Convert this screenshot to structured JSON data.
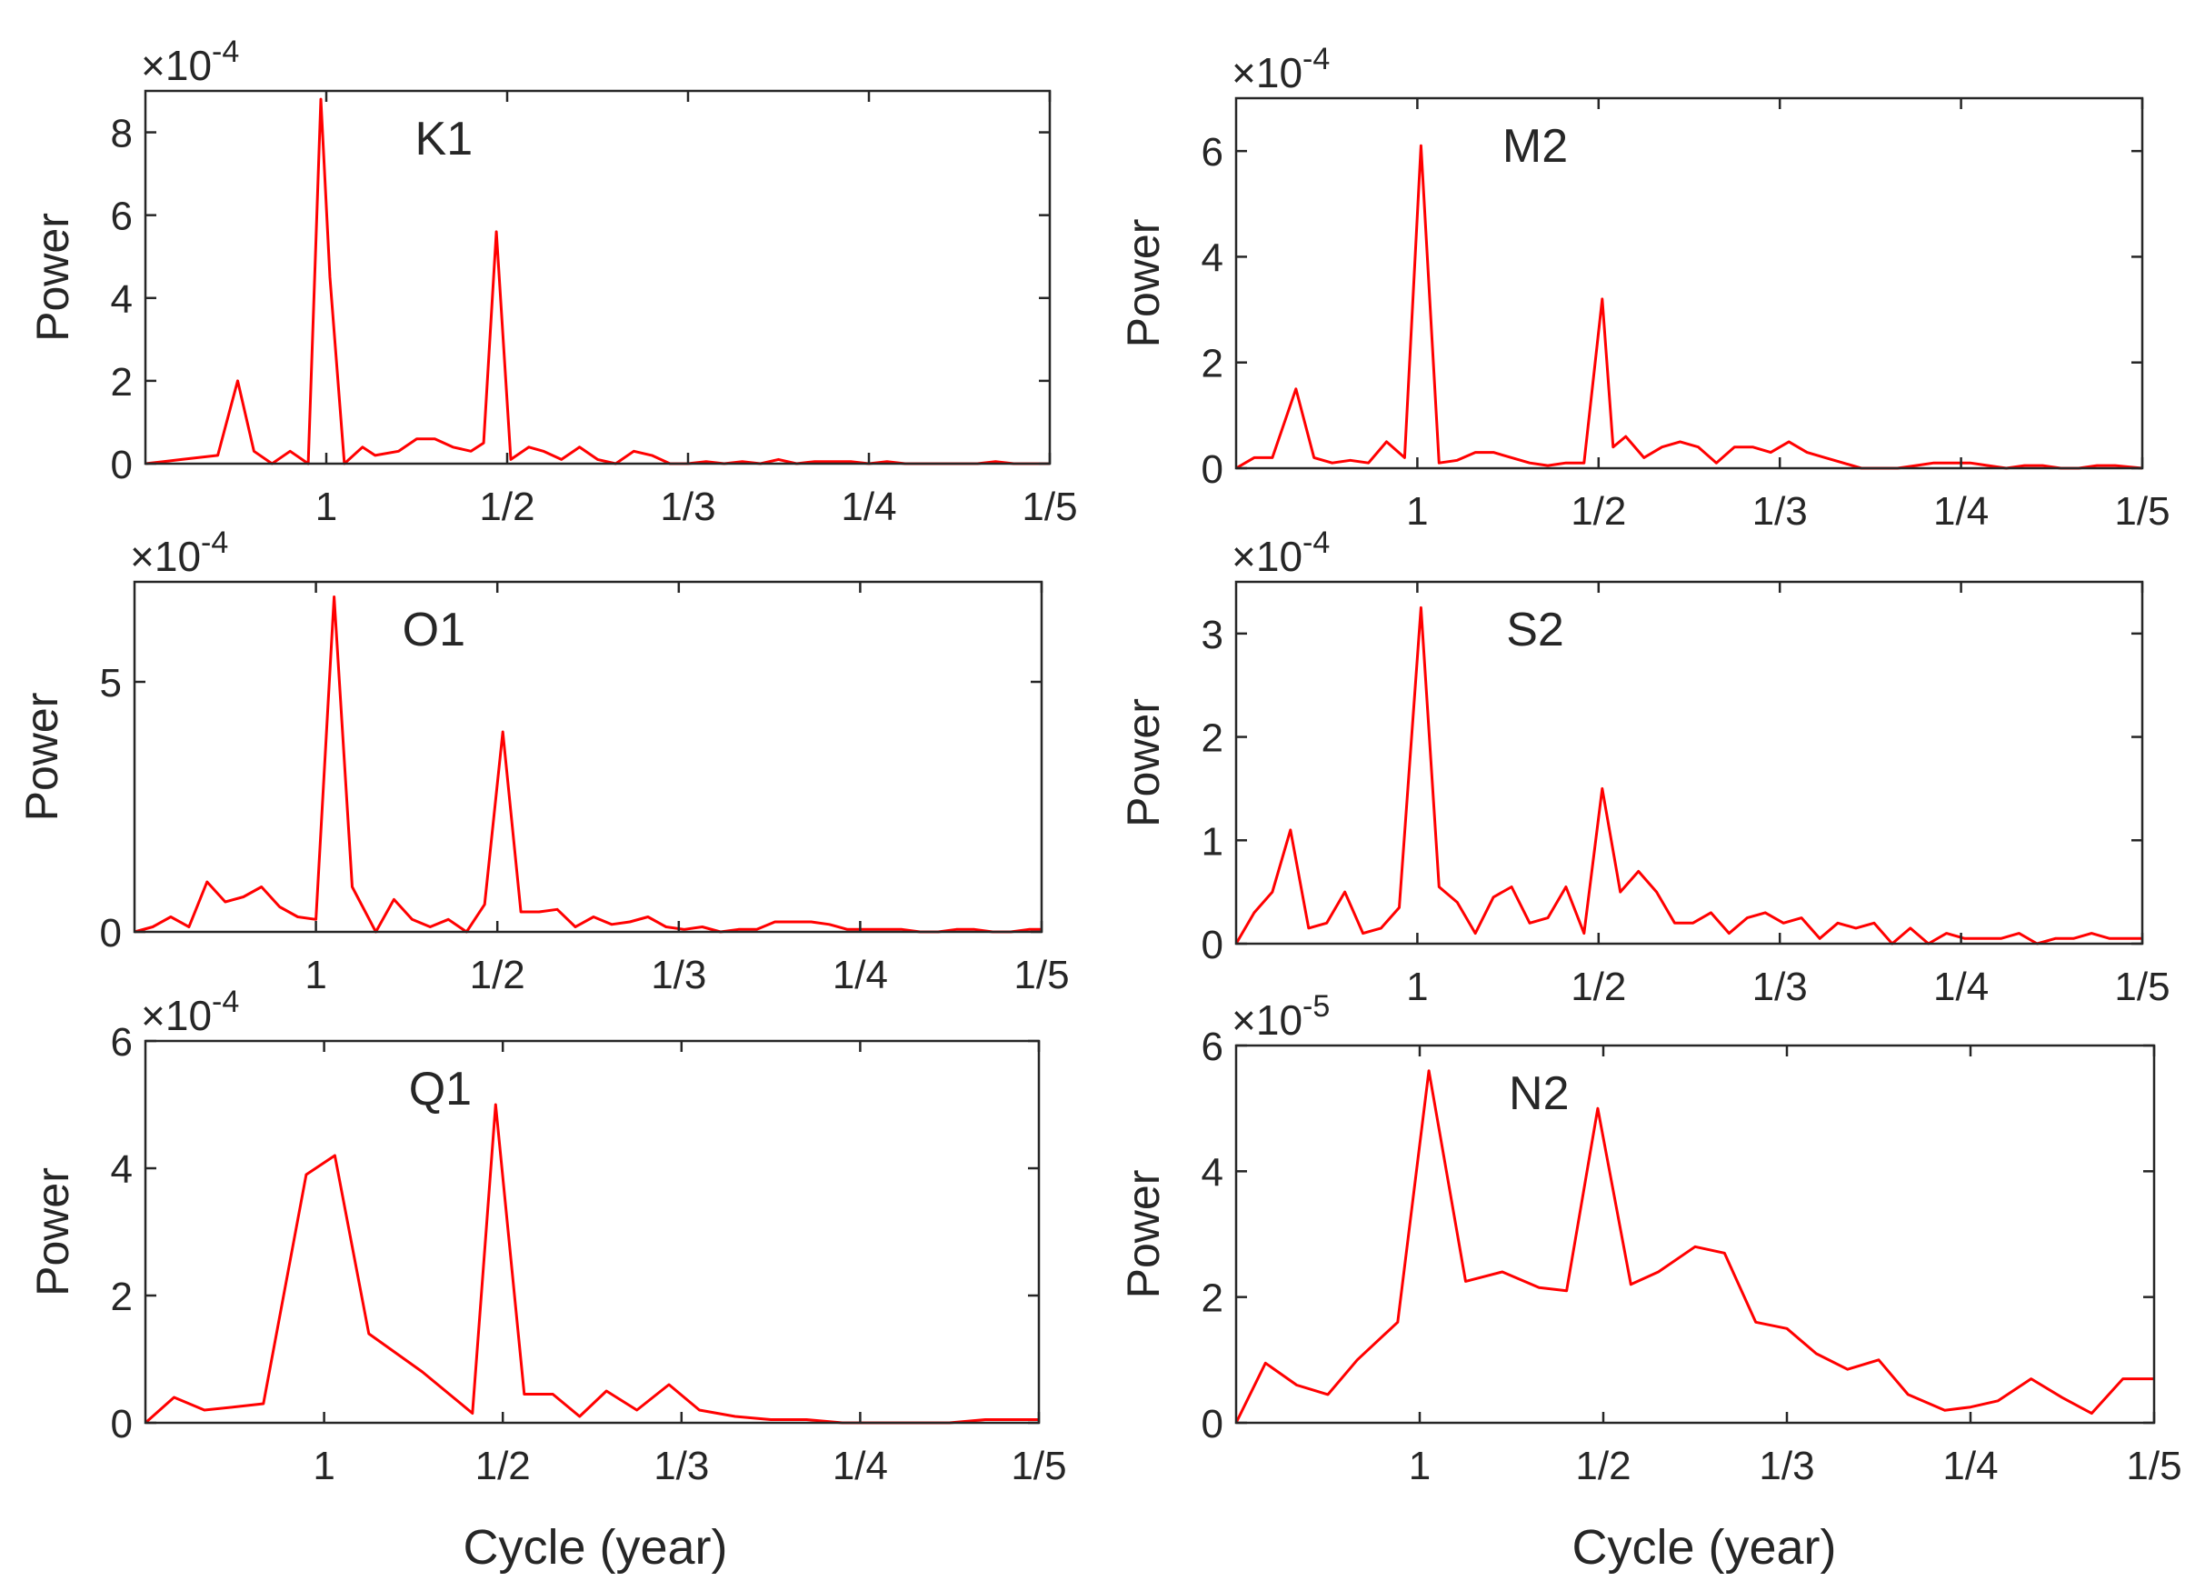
{
  "figure": {
    "xlabel": "Cycle (year)",
    "ylabel": "Power",
    "scale_prefix": "×10",
    "series_color": "#ff0000",
    "axes_color": "#262626"
  },
  "chart_data": [
    {
      "type": "line",
      "title": "K1",
      "xlabel": "",
      "ylabel": "Power",
      "exponent": "-4",
      "categories": [
        "1",
        "1/2",
        "1/3",
        "1/4",
        "1/5"
      ],
      "x_tick_values": [
        1,
        2,
        3,
        4,
        5
      ],
      "xlim": [
        0.0,
        5.0
      ],
      "ylim": [
        0,
        9
      ],
      "y_ticks": [
        0,
        2,
        4,
        6,
        8
      ],
      "y_tick_labels": [
        "0",
        "2",
        "4",
        "6",
        "8"
      ],
      "series": [
        {
          "name": "K1",
          "x": [
            0.0,
            0.1,
            0.2,
            0.4,
            0.51,
            0.6,
            0.7,
            0.8,
            0.9,
            0.97,
            1.02,
            1.1,
            1.2,
            1.27,
            1.4,
            1.5,
            1.6,
            1.7,
            1.8,
            1.87,
            1.94,
            2.02,
            2.12,
            2.2,
            2.3,
            2.4,
            2.5,
            2.6,
            2.7,
            2.8,
            2.9,
            3.0,
            3.1,
            3.2,
            3.3,
            3.4,
            3.5,
            3.6,
            3.7,
            3.8,
            3.9,
            4.0,
            4.1,
            4.2,
            4.3,
            4.4,
            4.5,
            4.6,
            4.7,
            4.8,
            4.9,
            5.0
          ],
          "values": [
            0.0,
            0.05,
            0.1,
            0.2,
            2.0,
            0.3,
            0.0,
            0.3,
            0.0,
            8.8,
            4.5,
            0.0,
            0.4,
            0.2,
            0.3,
            0.6,
            0.6,
            0.4,
            0.3,
            0.5,
            5.6,
            0.1,
            0.4,
            0.3,
            0.1,
            0.4,
            0.1,
            0.0,
            0.3,
            0.2,
            0.0,
            0.0,
            0.05,
            0.0,
            0.05,
            0.0,
            0.1,
            0.0,
            0.05,
            0.05,
            0.05,
            0.0,
            0.05,
            0.0,
            0.0,
            0.0,
            0.0,
            0.0,
            0.05,
            0.0,
            0.0,
            0.0
          ]
        }
      ]
    },
    {
      "type": "line",
      "title": "M2",
      "xlabel": "",
      "ylabel": "Power",
      "exponent": "-4",
      "categories": [
        "1",
        "1/2",
        "1/3",
        "1/4",
        "1/5"
      ],
      "x_tick_values": [
        1,
        2,
        3,
        4,
        5
      ],
      "xlim": [
        0.0,
        5.0
      ],
      "ylim": [
        0,
        7
      ],
      "y_ticks": [
        0,
        2,
        4,
        6
      ],
      "y_tick_labels": [
        "0",
        "2",
        "4",
        "6"
      ],
      "series": [
        {
          "name": "M2",
          "x": [
            0.0,
            0.1,
            0.2,
            0.33,
            0.43,
            0.53,
            0.63,
            0.73,
            0.83,
            0.93,
            1.02,
            1.12,
            1.22,
            1.32,
            1.42,
            1.52,
            1.62,
            1.72,
            1.82,
            1.92,
            2.02,
            2.08,
            2.15,
            2.25,
            2.35,
            2.45,
            2.55,
            2.65,
            2.75,
            2.85,
            2.95,
            3.05,
            3.15,
            3.25,
            3.35,
            3.45,
            3.55,
            3.65,
            3.75,
            3.85,
            3.95,
            4.05,
            4.15,
            4.25,
            4.35,
            4.45,
            4.55,
            4.65,
            4.75,
            4.85,
            5.0
          ],
          "values": [
            0.0,
            0.2,
            0.2,
            1.5,
            0.2,
            0.1,
            0.15,
            0.1,
            0.5,
            0.2,
            6.1,
            0.1,
            0.15,
            0.3,
            0.3,
            0.2,
            0.1,
            0.05,
            0.1,
            0.1,
            3.2,
            0.4,
            0.6,
            0.2,
            0.4,
            0.5,
            0.4,
            0.1,
            0.4,
            0.4,
            0.3,
            0.5,
            0.3,
            0.2,
            0.1,
            0.0,
            0.0,
            0.0,
            0.05,
            0.1,
            0.1,
            0.1,
            0.05,
            0.0,
            0.05,
            0.05,
            0.0,
            0.0,
            0.05,
            0.05,
            0.0
          ]
        }
      ]
    },
    {
      "type": "line",
      "title": "O1",
      "xlabel": "",
      "ylabel": "Power",
      "exponent": "-4",
      "categories": [
        "1",
        "1/2",
        "1/3",
        "1/4",
        "1/5"
      ],
      "x_tick_values": [
        1,
        2,
        3,
        4,
        5
      ],
      "xlim": [
        0.0,
        5.0
      ],
      "ylim": [
        0,
        7
      ],
      "y_ticks": [
        0,
        5
      ],
      "y_tick_labels": [
        "0",
        "5"
      ],
      "series": [
        {
          "name": "O1",
          "x": [
            0.0,
            0.1,
            0.2,
            0.3,
            0.4,
            0.5,
            0.6,
            0.7,
            0.8,
            0.9,
            1.0,
            1.1,
            1.2,
            1.33,
            1.43,
            1.53,
            1.63,
            1.73,
            1.83,
            1.93,
            2.03,
            2.13,
            2.23,
            2.33,
            2.43,
            2.53,
            2.63,
            2.73,
            2.83,
            2.93,
            3.03,
            3.13,
            3.23,
            3.33,
            3.43,
            3.53,
            3.63,
            3.73,
            3.83,
            3.93,
            4.03,
            4.13,
            4.23,
            4.33,
            4.43,
            4.53,
            4.63,
            4.73,
            4.83,
            4.93,
            5.0
          ],
          "values": [
            0.0,
            0.1,
            0.3,
            0.1,
            1.0,
            0.6,
            0.7,
            0.9,
            0.5,
            0.3,
            0.25,
            6.7,
            0.9,
            0.0,
            0.65,
            0.25,
            0.1,
            0.25,
            0.0,
            0.55,
            4.0,
            0.4,
            0.4,
            0.45,
            0.1,
            0.3,
            0.15,
            0.2,
            0.3,
            0.1,
            0.05,
            0.1,
            0.0,
            0.05,
            0.05,
            0.2,
            0.2,
            0.2,
            0.15,
            0.05,
            0.05,
            0.05,
            0.05,
            0.0,
            0.0,
            0.05,
            0.05,
            0.0,
            0.0,
            0.05,
            0.05
          ]
        }
      ]
    },
    {
      "type": "line",
      "title": "S2",
      "xlabel": "",
      "ylabel": "Power",
      "exponent": "-4",
      "categories": [
        "1",
        "1/2",
        "1/3",
        "1/4",
        "1/5"
      ],
      "x_tick_values": [
        1,
        2,
        3,
        4,
        5
      ],
      "xlim": [
        0.0,
        5.0
      ],
      "ylim": [
        0,
        3.5
      ],
      "y_ticks": [
        0,
        1,
        2,
        3
      ],
      "y_tick_labels": [
        "0",
        "1",
        "2",
        "3"
      ],
      "series": [
        {
          "name": "S2",
          "x": [
            0.0,
            0.1,
            0.2,
            0.3,
            0.4,
            0.5,
            0.6,
            0.7,
            0.8,
            0.9,
            1.02,
            1.12,
            1.22,
            1.32,
            1.42,
            1.52,
            1.62,
            1.72,
            1.82,
            1.92,
            2.02,
            2.12,
            2.22,
            2.32,
            2.42,
            2.52,
            2.62,
            2.72,
            2.82,
            2.92,
            3.02,
            3.12,
            3.22,
            3.32,
            3.42,
            3.52,
            3.62,
            3.72,
            3.82,
            3.92,
            4.02,
            4.12,
            4.22,
            4.32,
            4.42,
            4.52,
            4.62,
            4.72,
            4.82,
            4.92,
            5.0
          ],
          "values": [
            0.0,
            0.3,
            0.5,
            1.1,
            0.15,
            0.2,
            0.5,
            0.1,
            0.15,
            0.35,
            3.25,
            0.55,
            0.4,
            0.1,
            0.45,
            0.55,
            0.2,
            0.25,
            0.55,
            0.1,
            1.5,
            0.5,
            0.7,
            0.5,
            0.2,
            0.2,
            0.3,
            0.1,
            0.25,
            0.3,
            0.2,
            0.25,
            0.05,
            0.2,
            0.15,
            0.2,
            0.0,
            0.15,
            0.0,
            0.1,
            0.05,
            0.05,
            0.05,
            0.1,
            0.0,
            0.05,
            0.05,
            0.1,
            0.05,
            0.05,
            0.05
          ]
        }
      ]
    },
    {
      "type": "line",
      "title": "Q1",
      "xlabel": "Cycle (year)",
      "ylabel": "Power",
      "exponent": "-4",
      "categories": [
        "1",
        "1/2",
        "1/3",
        "1/4",
        "1/5"
      ],
      "x_tick_values": [
        1,
        2,
        3,
        4,
        5
      ],
      "xlim": [
        0.0,
        5.0
      ],
      "ylim": [
        0,
        6
      ],
      "y_ticks": [
        0,
        2,
        4,
        6
      ],
      "y_tick_labels": [
        "0",
        "2",
        "4",
        "6"
      ],
      "series": [
        {
          "name": "Q1",
          "x": [
            0.0,
            0.16,
            0.33,
            0.5,
            0.66,
            0.9,
            1.06,
            1.25,
            1.55,
            1.83,
            1.96,
            2.12,
            2.28,
            2.43,
            2.58,
            2.75,
            2.93,
            3.1,
            3.3,
            3.5,
            3.7,
            3.9,
            4.1,
            4.3,
            4.5,
            4.7,
            4.9,
            5.0
          ],
          "values": [
            0.0,
            0.4,
            0.2,
            0.25,
            0.3,
            3.9,
            4.2,
            1.4,
            0.8,
            0.15,
            5.0,
            0.45,
            0.45,
            0.1,
            0.5,
            0.2,
            0.6,
            0.2,
            0.1,
            0.05,
            0.05,
            0.0,
            0.0,
            0.0,
            0.0,
            0.05,
            0.05,
            0.05
          ]
        }
      ]
    },
    {
      "type": "line",
      "title": "N2",
      "xlabel": "Cycle (year)",
      "ylabel": "Power",
      "exponent": "-5",
      "categories": [
        "1",
        "1/2",
        "1/3",
        "1/4",
        "1/5"
      ],
      "x_tick_values": [
        1,
        2,
        3,
        4,
        5
      ],
      "xlim": [
        0.0,
        5.0
      ],
      "ylim": [
        0,
        6
      ],
      "y_ticks": [
        0,
        2,
        4,
        6
      ],
      "y_tick_labels": [
        "0",
        "2",
        "4",
        "6"
      ],
      "series": [
        {
          "name": "N2",
          "x": [
            0.0,
            0.16,
            0.33,
            0.5,
            0.66,
            0.88,
            1.05,
            1.25,
            1.45,
            1.65,
            1.8,
            1.97,
            2.15,
            2.3,
            2.5,
            2.66,
            2.83,
            3.0,
            3.16,
            3.33,
            3.5,
            3.66,
            3.86,
            4.0,
            4.15,
            4.33,
            4.5,
            4.66,
            4.83,
            5.0
          ],
          "values": [
            0.0,
            0.95,
            0.6,
            0.45,
            1.0,
            1.6,
            5.6,
            2.25,
            2.4,
            2.15,
            2.1,
            5.0,
            2.2,
            2.4,
            2.8,
            2.7,
            1.6,
            1.5,
            1.1,
            0.85,
            1.0,
            0.45,
            0.2,
            0.25,
            0.35,
            0.7,
            0.4,
            0.15,
            0.7,
            0.7
          ]
        }
      ]
    }
  ]
}
